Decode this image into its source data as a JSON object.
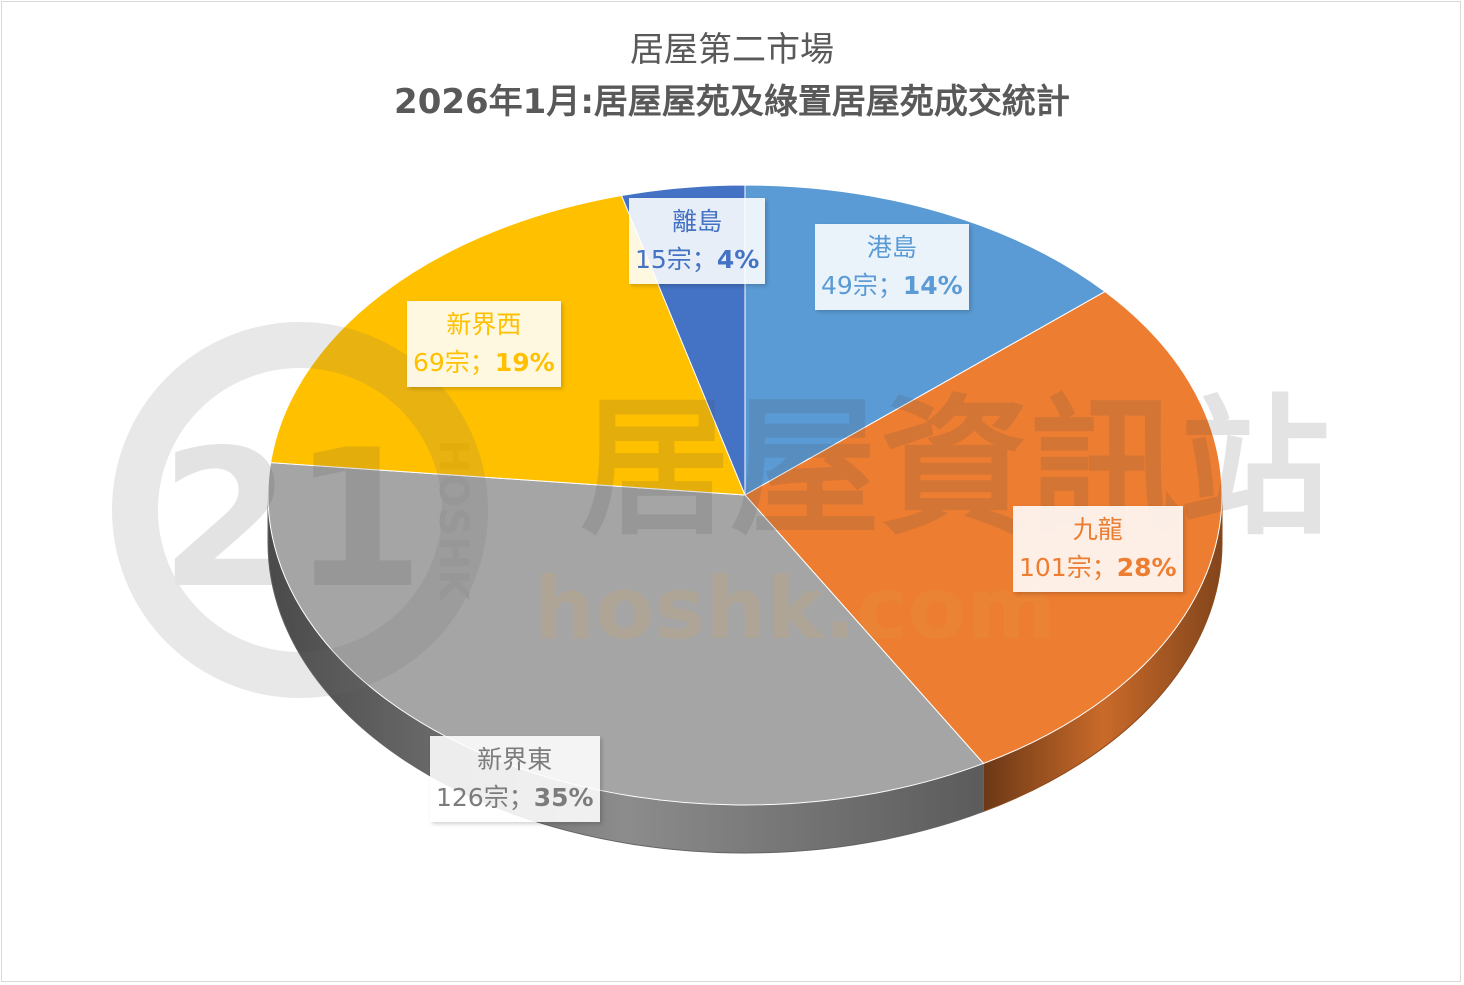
{
  "title": "居屋第二市場",
  "subtitle": "2026年1月:居屋屋苑及綠置居屋苑成交統計",
  "watermark": {
    "logo_number": "21",
    "logo_arc_text": "HOSHK",
    "brand_text": "居屋資訊站",
    "url_text": "hoshk.com"
  },
  "chart_data": {
    "type": "pie",
    "title": "居屋第二市場",
    "subtitle": "2026年1月:居屋屋苑及綠置居屋苑成交統計",
    "slices": [
      {
        "name": "港島",
        "value": 49,
        "percent": 14,
        "label_count": "49宗；",
        "label_pct": "14%",
        "color": "#5b9bd5"
      },
      {
        "name": "九龍",
        "value": 101,
        "percent": 28,
        "label_count": "101宗；",
        "label_pct": "28%",
        "color": "#ed7d31"
      },
      {
        "name": "新界東",
        "value": 126,
        "percent": 35,
        "label_count": "126宗；",
        "label_pct": "35%",
        "color": "#a5a5a5"
      },
      {
        "name": "新界西",
        "value": 69,
        "percent": 19,
        "label_count": "69宗；",
        "label_pct": "19%",
        "color": "#ffc000"
      },
      {
        "name": "離島",
        "value": 15,
        "percent": 4,
        "label_count": "15宗；",
        "label_pct": "4%",
        "color": "#4472c4"
      }
    ]
  }
}
